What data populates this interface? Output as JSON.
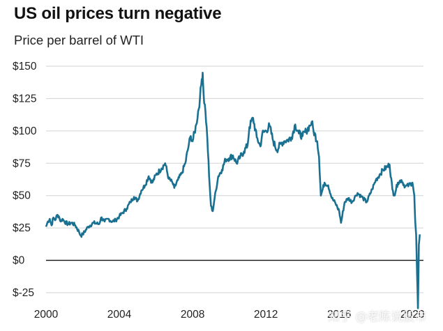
{
  "chart_data": {
    "type": "line",
    "title": "US oil prices turn negative",
    "subtitle": "Price per barrel of WTI",
    "xlabel": "",
    "ylabel": "",
    "xlim": [
      2000,
      2020.6
    ],
    "ylim": [
      -25,
      150
    ],
    "y_ticks": [
      -25,
      0,
      25,
      50,
      75,
      100,
      125,
      150
    ],
    "y_tick_labels": [
      "$-25",
      "$0",
      "$25",
      "$50",
      "$75",
      "$100",
      "$125",
      "$150"
    ],
    "x_ticks": [
      2000,
      2004,
      2008,
      2012,
      2016,
      2020
    ],
    "grid": true,
    "zero_line": true,
    "line_color": "#1a7091",
    "series": [
      {
        "x": [
          2000.0,
          2000.1,
          2000.2,
          2000.3,
          2000.4,
          2000.5,
          2000.6,
          2000.7,
          2000.8,
          2000.9,
          2001.0,
          2001.2,
          2001.4,
          2001.6,
          2001.8,
          2001.9,
          2002.0,
          2002.3,
          2002.6,
          2002.9,
          2003.0,
          2003.2,
          2003.4,
          2003.6,
          2003.8,
          2004.0,
          2004.2,
          2004.4,
          2004.6,
          2004.8,
          2005.0,
          2005.2,
          2005.4,
          2005.6,
          2005.8,
          2006.0,
          2006.3,
          2006.5,
          2006.7,
          2006.9,
          2007.0,
          2007.2,
          2007.4,
          2007.6,
          2007.8,
          2007.9,
          2008.0,
          2008.2,
          2008.4,
          2008.5,
          2008.55,
          2008.6,
          2008.7,
          2008.8,
          2008.9,
          2009.0,
          2009.1,
          2009.2,
          2009.4,
          2009.6,
          2009.8,
          2010.0,
          2010.2,
          2010.4,
          2010.6,
          2010.8,
          2011.0,
          2011.1,
          2011.3,
          2011.5,
          2011.7,
          2011.8,
          2012.0,
          2012.2,
          2012.4,
          2012.6,
          2012.8,
          2013.0,
          2013.2,
          2013.4,
          2013.6,
          2013.8,
          2014.0,
          2014.2,
          2014.4,
          2014.5,
          2014.6,
          2014.8,
          2014.9,
          2015.0,
          2015.2,
          2015.4,
          2015.6,
          2015.8,
          2016.0,
          2016.1,
          2016.3,
          2016.5,
          2016.7,
          2016.9,
          2017.0,
          2017.3,
          2017.5,
          2017.8,
          2018.0,
          2018.2,
          2018.4,
          2018.6,
          2018.75,
          2018.9,
          2019.0,
          2019.2,
          2019.4,
          2019.6,
          2019.8,
          2020.0,
          2020.1,
          2020.15,
          2020.2,
          2020.25,
          2020.3,
          2020.35,
          2020.4
        ],
        "y": [
          26,
          30,
          32,
          27,
          33,
          31,
          35,
          34,
          30,
          32,
          30,
          28,
          29,
          27,
          22,
          19,
          20,
          26,
          29,
          28,
          33,
          30,
          32,
          30,
          31,
          34,
          37,
          40,
          45,
          49,
          46,
          54,
          58,
          65,
          60,
          66,
          71,
          75,
          63,
          60,
          56,
          62,
          67,
          75,
          90,
          96,
          92,
          105,
          125,
          140,
          145,
          128,
          115,
          95,
          65,
          42,
          38,
          48,
          65,
          70,
          78,
          79,
          81,
          75,
          80,
          84,
          89,
          103,
          110,
          95,
          88,
          98,
          100,
          104,
          92,
          85,
          90,
          92,
          93,
          95,
          105,
          98,
          96,
          100,
          104,
          107,
          100,
          92,
          80,
          50,
          60,
          58,
          48,
          44,
          38,
          29,
          45,
          48,
          45,
          50,
          52,
          48,
          45,
          55,
          62,
          66,
          70,
          72,
          74,
          55,
          50,
          60,
          62,
          57,
          58,
          60,
          50,
          30,
          20,
          -10,
          -37,
          12,
          20
        ]
      }
    ]
  },
  "watermark": "知乎 @老陈说股市"
}
